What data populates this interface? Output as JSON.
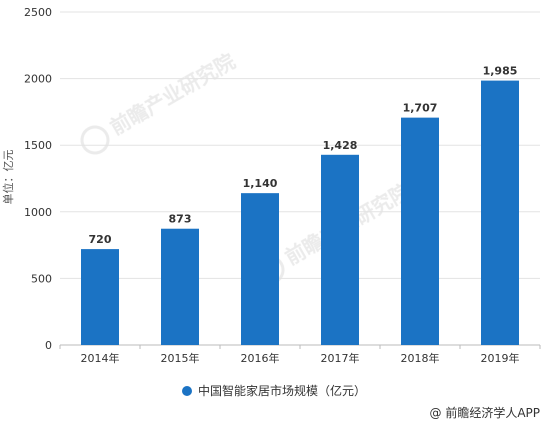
{
  "chart_data": {
    "type": "bar",
    "categories": [
      "2014年",
      "2015年",
      "2016年",
      "2017年",
      "2018年",
      "2019年"
    ],
    "values": [
      720,
      873,
      1140,
      1428,
      1707,
      1985
    ],
    "data_labels": [
      "720",
      "873",
      "1,140",
      "1,428",
      "1,707",
      "1,985"
    ],
    "ylabel": "单位：亿元",
    "ylim": [
      0,
      2500
    ],
    "yticks": [
      0,
      500,
      1000,
      1500,
      2000,
      2500
    ],
    "grid": true,
    "legend_position": "bottom",
    "series": [
      {
        "name": "中国智能家居市场规模（亿元）",
        "color": "#1b73c4"
      }
    ]
  },
  "watermark": "前瞻产业研究院",
  "credit": "@ 前瞻经济学人APP"
}
